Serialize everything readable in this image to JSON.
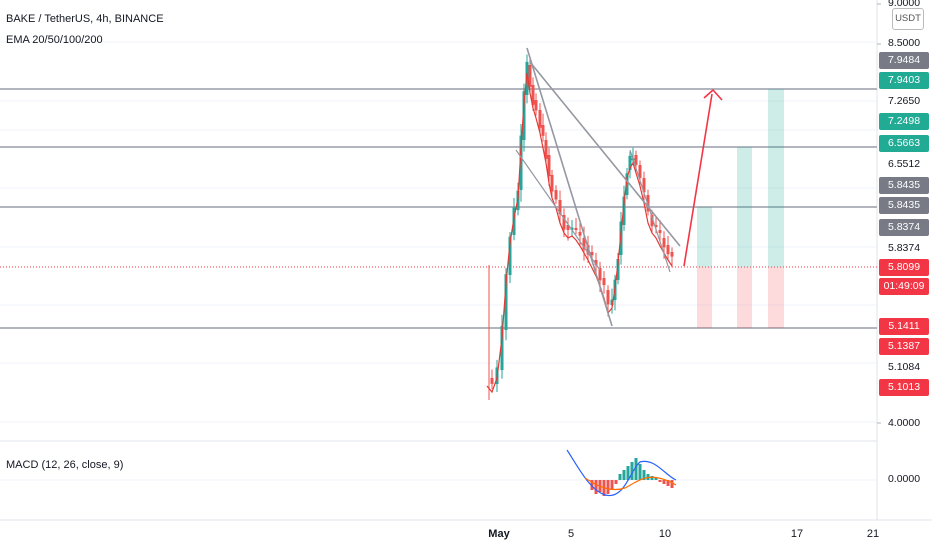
{
  "header": {
    "symbol_line": "BAKE / TetherUS, 4h, BINANCE",
    "indicator": "EMA 20/50/100/200",
    "macd_label": "MACD (12, 26, close, 9)"
  },
  "currency_button": "USDT",
  "price_axis": {
    "labels": [
      "9.0000",
      "8.5000",
      "7.9484",
      "7.9403",
      "7.2650",
      "7.2498",
      "6.5663",
      "6.5512",
      "5.8435",
      "5.8435",
      "5.8374",
      "5.8374",
      "5.8099",
      "01:49:09",
      "5.1411",
      "5.1387",
      "5.1084",
      "5.1013",
      "4.0000"
    ],
    "macd_zero": "0.0000"
  },
  "time_axis": [
    "May",
    "5",
    "10",
    "17",
    "21"
  ],
  "colors": {
    "up": "#26a69a",
    "down": "#ef5350",
    "level_line": "#b2b5be",
    "trend_line": "#9598a1",
    "arrow": "#f23645",
    "tag_gray": "#787b86",
    "tag_green": "#22ab94",
    "tag_red": "#f23645"
  }
}
